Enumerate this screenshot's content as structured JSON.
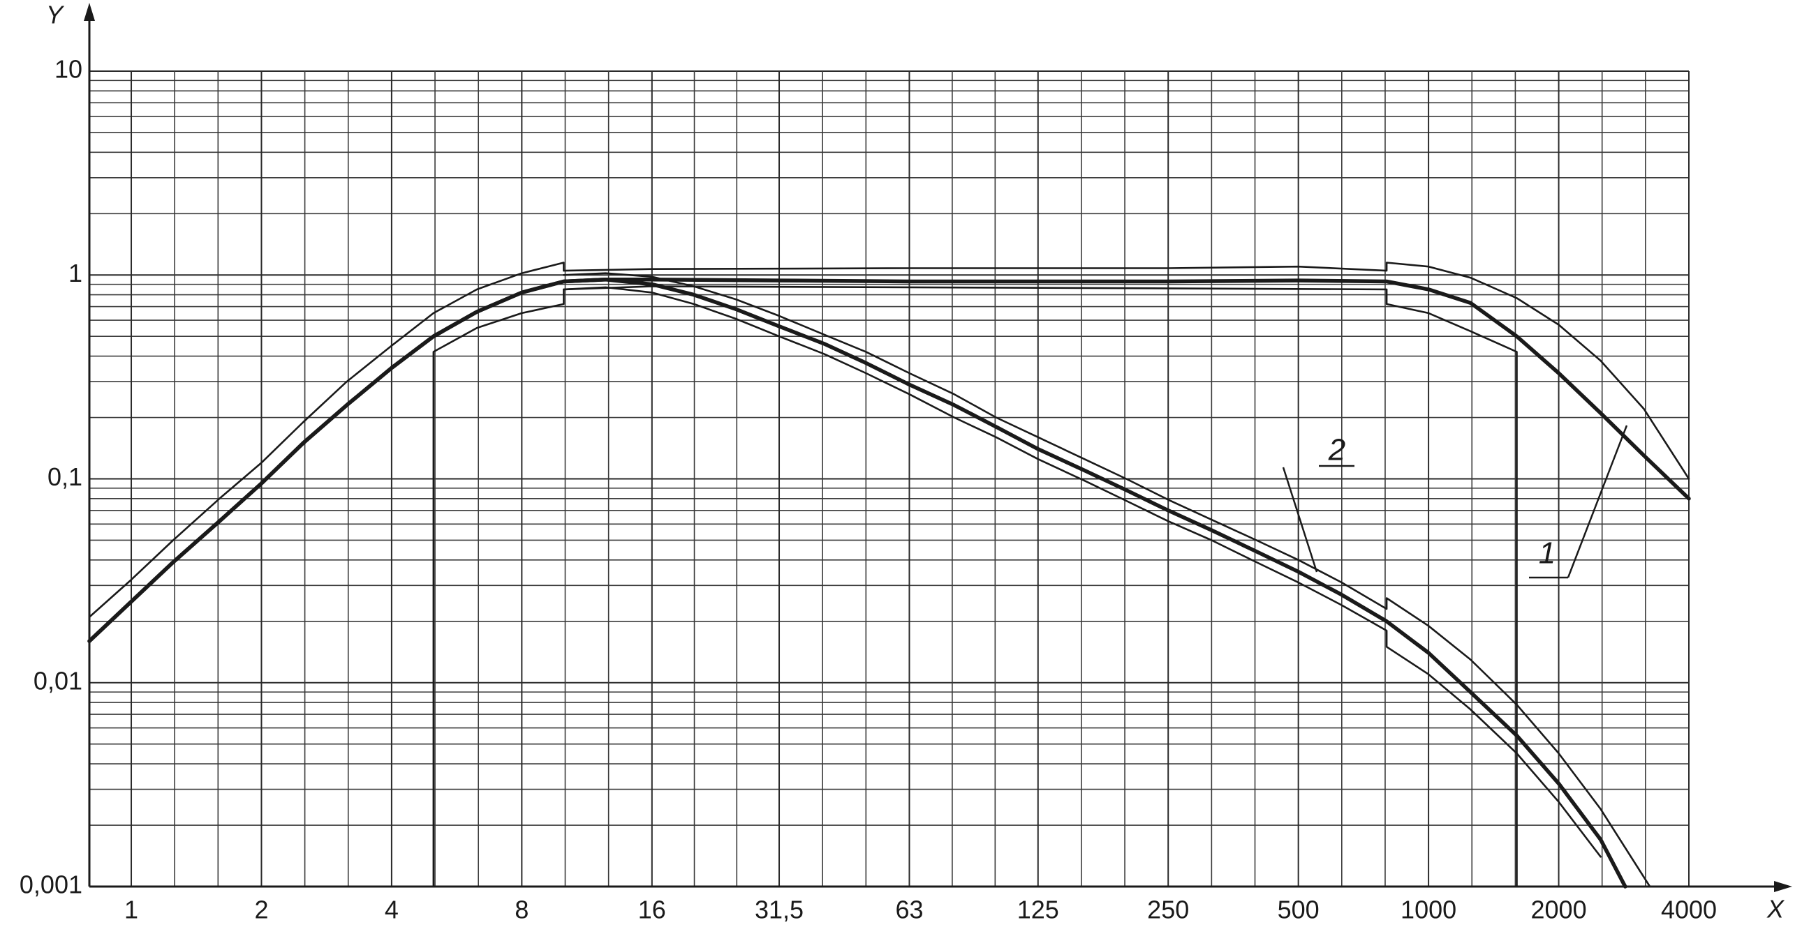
{
  "chart_data": {
    "type": "line",
    "x_label": "X",
    "y_label": "Y",
    "log_x": true,
    "log_y": true,
    "grid": true,
    "minor_grid": true,
    "color": "#1a1a1a",
    "xlim": [
      0.8,
      4000
    ],
    "ylim": [
      0.001,
      10
    ],
    "xticks": [
      1,
      2,
      4,
      8,
      16,
      {
        "value": 31.5,
        "label": "31,5"
      },
      63,
      125,
      250,
      500,
      1000,
      2000,
      4000
    ],
    "yticks": [
      {
        "value": 0.001,
        "label": "0,001"
      },
      {
        "value": 0.01,
        "label": "0,01"
      },
      {
        "value": 0.1,
        "label": "0,1"
      },
      1,
      10
    ],
    "series": [
      {
        "name": "1",
        "style": "thick",
        "x": [
          0.8,
          1,
          1.25,
          1.6,
          2,
          2.5,
          3.15,
          4,
          5,
          6.3,
          8,
          10,
          12.5,
          16,
          31.5,
          63,
          125,
          250,
          500,
          800,
          1000,
          1250,
          1600,
          2000,
          2500,
          3150,
          4000
        ],
        "values": [
          0.016,
          0.025,
          0.039,
          0.062,
          0.095,
          0.15,
          0.23,
          0.35,
          0.5,
          0.66,
          0.82,
          0.93,
          0.95,
          0.95,
          0.94,
          0.93,
          0.93,
          0.93,
          0.94,
          0.93,
          0.85,
          0.73,
          0.5,
          0.33,
          0.21,
          0.13,
          0.08
        ]
      },
      {
        "style": "thin",
        "x": [
          0.8,
          1,
          1.25,
          1.6,
          2,
          2.5,
          3.15,
          4,
          5,
          6.3,
          8,
          10,
          10,
          16,
          63,
          250,
          500,
          800,
          800,
          1000,
          1250,
          1600,
          2000,
          2500,
          3150,
          4000
        ],
        "values": [
          0.021,
          0.032,
          0.05,
          0.08,
          0.12,
          0.19,
          0.3,
          0.45,
          0.65,
          0.85,
          1.02,
          1.15,
          1.05,
          1.07,
          1.08,
          1.08,
          1.1,
          1.05,
          1.15,
          1.1,
          0.97,
          0.77,
          0.57,
          0.38,
          0.22,
          0.1
        ]
      },
      {
        "style": "thin",
        "x": [
          5,
          5,
          6.3,
          8,
          10,
          10,
          16,
          63,
          250,
          800,
          800,
          1000,
          1250,
          1600,
          1600
        ],
        "values": [
          0.001,
          0.42,
          0.55,
          0.65,
          0.72,
          0.85,
          0.88,
          0.87,
          0.86,
          0.85,
          0.72,
          0.65,
          0.53,
          0.42,
          0.001
        ]
      },
      {
        "name": "2",
        "style": "thick",
        "x": [
          0.8,
          1,
          1.25,
          1.6,
          2,
          2.5,
          3.15,
          4,
          5,
          6.3,
          8,
          10,
          12.5,
          16,
          20,
          25,
          31.5,
          40,
          50,
          63,
          80,
          100,
          125,
          160,
          200,
          250,
          315,
          400,
          500,
          630,
          800,
          1000,
          1250,
          1600,
          2000,
          2500,
          2850
        ],
        "values": [
          0.016,
          0.025,
          0.039,
          0.062,
          0.095,
          0.15,
          0.23,
          0.35,
          0.5,
          0.66,
          0.82,
          0.93,
          0.95,
          0.9,
          0.8,
          0.68,
          0.56,
          0.46,
          0.37,
          0.29,
          0.23,
          0.18,
          0.14,
          0.11,
          0.088,
          0.07,
          0.056,
          0.044,
          0.035,
          0.027,
          0.02,
          0.014,
          0.009,
          0.0055,
          0.0032,
          0.0017,
          0.001
        ]
      },
      {
        "style": "thin",
        "x": [
          10,
          12.5,
          16,
          20,
          25,
          31.5,
          40,
          50,
          63,
          80,
          100,
          125,
          160,
          200,
          250,
          315,
          400,
          500,
          630,
          800,
          800,
          1000,
          1250,
          1600,
          2000,
          2500,
          3250
        ],
        "values": [
          1.0,
          1.02,
          0.98,
          0.88,
          0.76,
          0.63,
          0.51,
          0.42,
          0.33,
          0.26,
          0.2,
          0.16,
          0.125,
          0.1,
          0.079,
          0.063,
          0.05,
          0.04,
          0.031,
          0.023,
          0.026,
          0.019,
          0.013,
          0.0078,
          0.0045,
          0.0024,
          0.001
        ]
      },
      {
        "style": "thin",
        "x": [
          10,
          12.5,
          16,
          20,
          25,
          31.5,
          40,
          50,
          63,
          80,
          100,
          125,
          160,
          200,
          250,
          315,
          400,
          500,
          630,
          800,
          800,
          1000,
          1250,
          1600,
          2000,
          2500
        ],
        "values": [
          0.85,
          0.87,
          0.82,
          0.72,
          0.61,
          0.5,
          0.41,
          0.33,
          0.26,
          0.2,
          0.16,
          0.125,
          0.098,
          0.078,
          0.062,
          0.05,
          0.039,
          0.031,
          0.024,
          0.018,
          0.015,
          0.011,
          0.0074,
          0.0045,
          0.0026,
          0.0014
        ]
      }
    ]
  }
}
